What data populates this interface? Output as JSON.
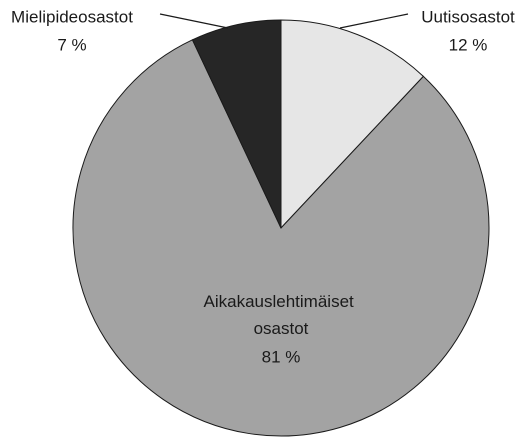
{
  "chart_data": {
    "type": "pie",
    "categories": [
      "Uutisosastot",
      "Aikakauslehtimäiset osastot",
      "Mielipideosastot"
    ],
    "values": [
      12,
      81,
      7
    ],
    "value_labels": [
      "12 %",
      "81 %",
      "7 %"
    ],
    "colors": [
      "#e6e6e6",
      "#a3a3a3",
      "#262626"
    ]
  }
}
